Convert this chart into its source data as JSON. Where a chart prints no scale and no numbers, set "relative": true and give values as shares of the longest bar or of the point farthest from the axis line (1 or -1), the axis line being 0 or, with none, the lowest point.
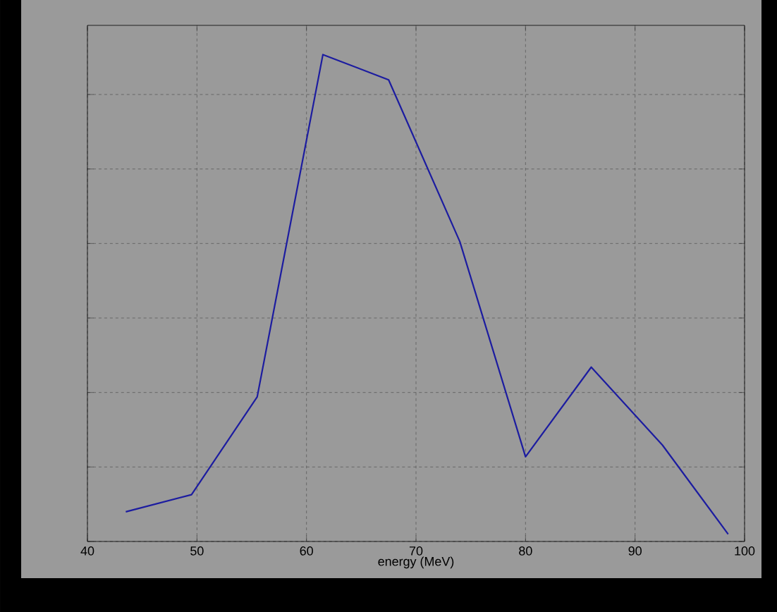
{
  "chart_data": {
    "type": "line",
    "xlabel": "energy (MeV)",
    "relative": true,
    "x": [
      43.5,
      49.5,
      55.5,
      61.5,
      67.5,
      74,
      80,
      86,
      92.5,
      98.5
    ],
    "series": [
      {
        "color": "#1c1ca0",
        "values": [
          0.061,
          0.096,
          0.297,
          1,
          0.948,
          0.616,
          0.174,
          0.358,
          0.198,
          0.015
        ]
      }
    ],
    "xlim": [
      40,
      100
    ],
    "xticks": [
      40,
      50,
      60,
      70,
      80,
      90,
      100
    ],
    "grid": true,
    "tick_labels": "x",
    "marker": "none",
    "line_style": "solid"
  }
}
